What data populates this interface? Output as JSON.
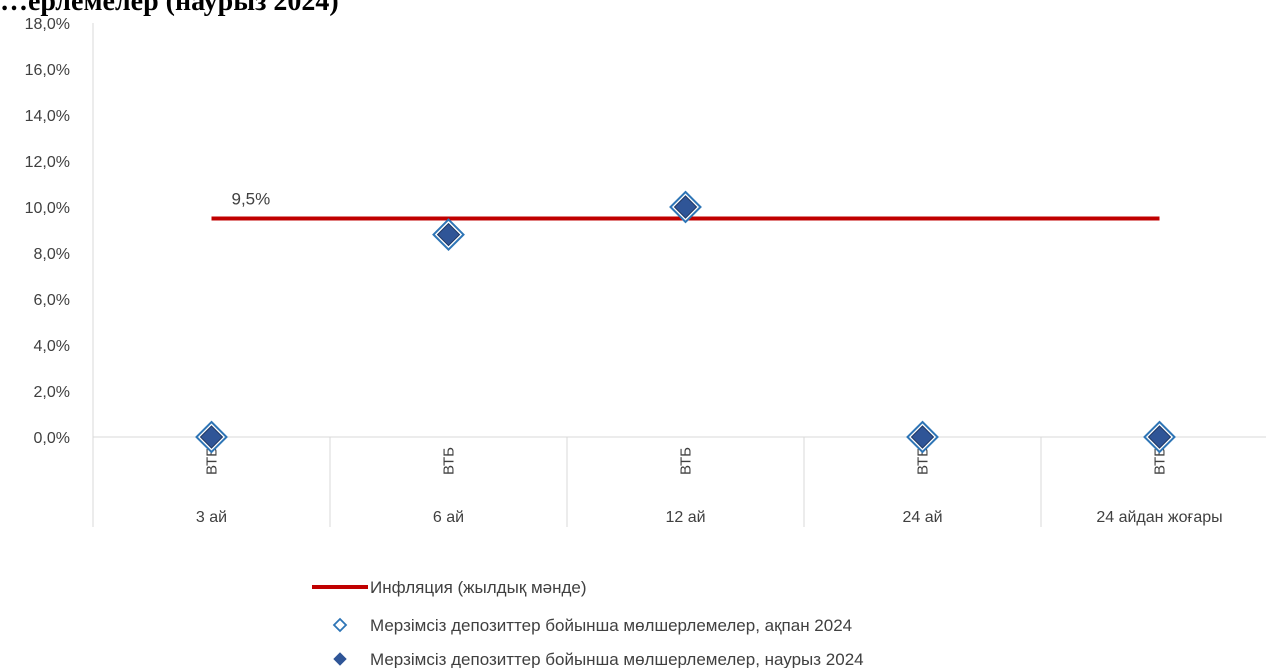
{
  "title": "…ерлемелер (наурыз 2024)",
  "chart_data": {
    "type": "line",
    "ylim": [
      0,
      18
    ],
    "yticks": [
      "0,0%",
      "2,0%",
      "4,0%",
      "6,0%",
      "8,0%",
      "10,0%",
      "12,0%",
      "14,0%",
      "16,0%",
      "18,0%"
    ],
    "categories": [
      {
        "group": "3 ай",
        "bank": "ВТБ"
      },
      {
        "group": "6 ай",
        "bank": "ВТБ"
      },
      {
        "group": "12 ай",
        "bank": "ВТБ"
      },
      {
        "group": "24 ай",
        "bank": "ВТБ"
      },
      {
        "group": "24 айдан жоғары",
        "bank": "ВТБ"
      }
    ],
    "series": [
      {
        "name": "Инфляция (жылдық мәнде)",
        "kind": "line",
        "color": "#c00000",
        "values": [
          9.5,
          9.5,
          9.5,
          9.5,
          9.5
        ],
        "label": "9,5%"
      },
      {
        "name": "Мерзімсіз депозиттер бойынша мөлшерлемелер, ақпан 2024",
        "kind": "hollow-diamond",
        "color": "#2e75b6",
        "values": [
          0,
          8.8,
          10.0,
          0,
          0
        ]
      },
      {
        "name": "Мерзімсіз депозиттер бойынша мөлшерлемелер, наурыз 2024",
        "kind": "filled-diamond",
        "color": "#2f5597",
        "values": [
          0,
          8.8,
          10.0,
          0,
          0
        ]
      }
    ],
    "grid": false,
    "legend": "bottom"
  }
}
